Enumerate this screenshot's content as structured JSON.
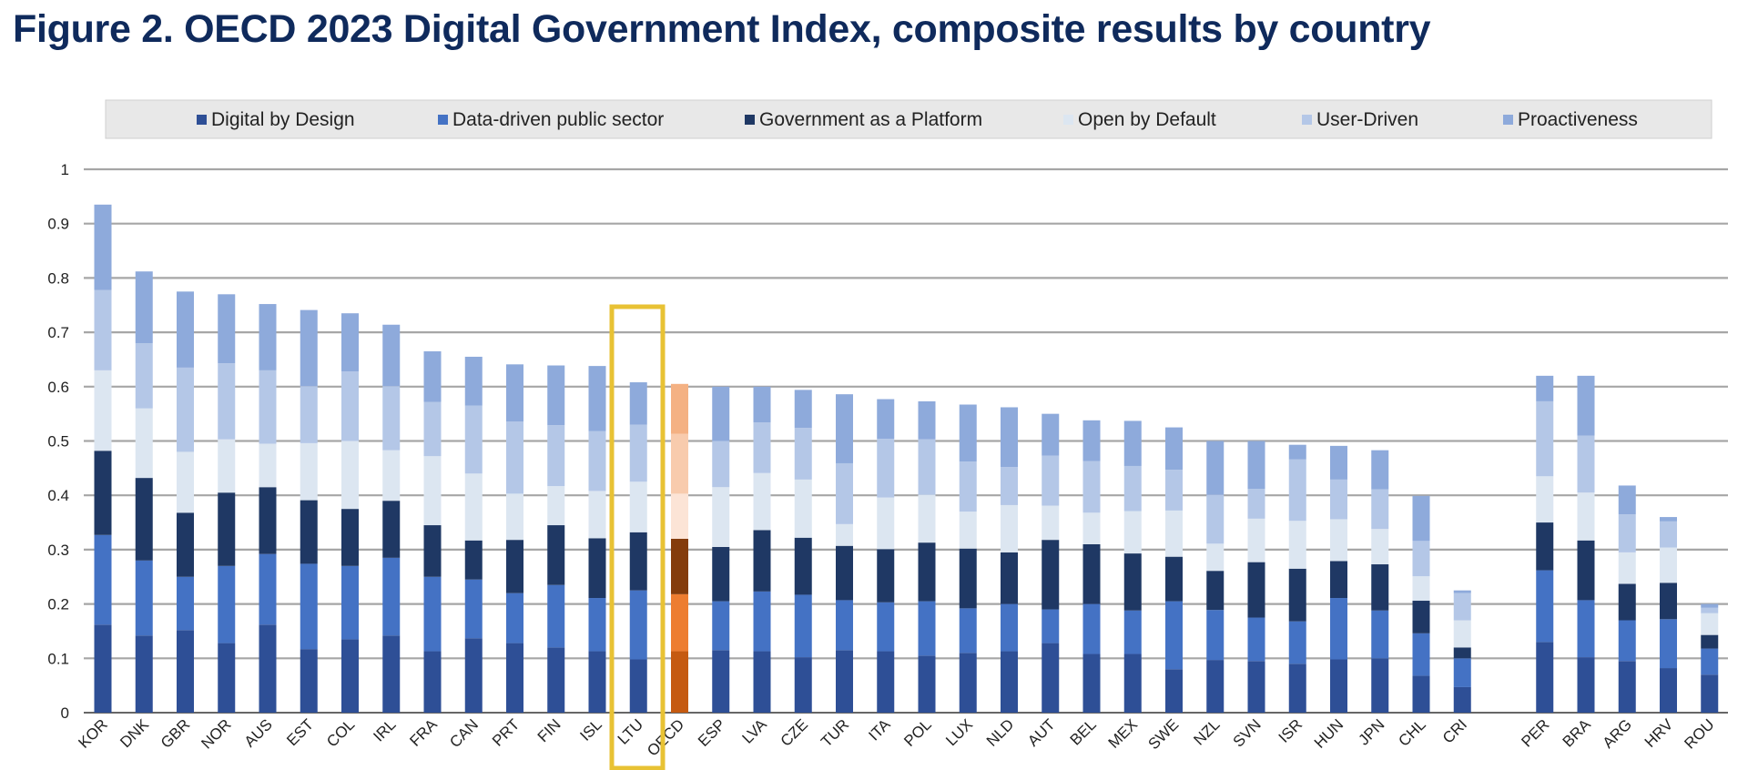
{
  "title": "Figure 2. OECD 2023 Digital Government Index, composite results by country",
  "chart_data": {
    "type": "bar",
    "stacked": true,
    "title": "Figure 2. OECD 2023 Digital Government Index, composite results by country",
    "xlabel": "",
    "ylabel": "",
    "ylim": [
      0,
      1
    ],
    "yticks": [
      "0",
      "0.1",
      "0.2",
      "0.3",
      "0.4",
      "0.5",
      "0.6",
      "0.7",
      "0.8",
      "0.9",
      "1"
    ],
    "grid": true,
    "legend_position": "top",
    "highlight": "LTU",
    "categories": [
      "KOR",
      "DNK",
      "GBR",
      "NOR",
      "AUS",
      "EST",
      "COL",
      "IRL",
      "FRA",
      "CAN",
      "PRT",
      "FIN",
      "ISL",
      "LTU",
      "OECD",
      "ESP",
      "LVA",
      "CZE",
      "TUR",
      "ITA",
      "POL",
      "LUX",
      "NLD",
      "AUT",
      "BEL",
      "MEX",
      "SWE",
      "NZL",
      "SVN",
      "ISR",
      "HUN",
      "JPN",
      "CHL",
      "CRI",
      "",
      "PER",
      "BRA",
      "ARG",
      "HRV",
      "ROU"
    ],
    "series": [
      {
        "name": "Digital by Design",
        "color": "#2e4f96",
        "values": [
          0.162,
          0.142,
          0.152,
          0.128,
          0.162,
          0.117,
          0.135,
          0.142,
          0.113,
          0.137,
          0.128,
          0.12,
          0.113,
          0.098,
          0.113,
          0.115,
          0.113,
          0.102,
          0.115,
          0.113,
          0.105,
          0.11,
          0.113,
          0.128,
          0.108,
          0.108,
          0.08,
          0.097,
          0.095,
          0.09,
          0.098,
          0.1,
          0.068,
          0.047,
          null,
          0.13,
          0.102,
          0.095,
          0.082,
          0.07
        ]
      },
      {
        "name": "Data-driven public sector",
        "color": "#4472c4",
        "values": [
          0.165,
          0.138,
          0.098,
          0.142,
          0.13,
          0.157,
          0.135,
          0.143,
          0.137,
          0.108,
          0.092,
          0.115,
          0.098,
          0.127,
          0.105,
          0.09,
          0.11,
          0.115,
          0.092,
          0.09,
          0.1,
          0.082,
          0.087,
          0.062,
          0.092,
          0.08,
          0.125,
          0.092,
          0.08,
          0.078,
          0.113,
          0.088,
          0.078,
          0.053,
          null,
          0.132,
          0.105,
          0.075,
          0.09,
          0.048
        ]
      },
      {
        "name": "Government as a Platform",
        "color": "#1f3864",
        "values": [
          0.155,
          0.152,
          0.118,
          0.135,
          0.123,
          0.117,
          0.105,
          0.105,
          0.095,
          0.072,
          0.098,
          0.11,
          0.11,
          0.107,
          0.102,
          0.1,
          0.113,
          0.105,
          0.1,
          0.098,
          0.108,
          0.11,
          0.095,
          0.128,
          0.11,
          0.105,
          0.082,
          0.072,
          0.102,
          0.097,
          0.068,
          0.085,
          0.06,
          0.02,
          null,
          0.088,
          0.11,
          0.067,
          0.067,
          0.025
        ]
      },
      {
        "name": "Open by Default",
        "color": "#dce6f1",
        "values": [
          0.148,
          0.128,
          0.112,
          0.098,
          0.08,
          0.105,
          0.125,
          0.093,
          0.127,
          0.123,
          0.085,
          0.072,
          0.087,
          0.093,
          0.083,
          0.11,
          0.105,
          0.107,
          0.04,
          0.095,
          0.088,
          0.068,
          0.087,
          0.063,
          0.058,
          0.078,
          0.085,
          0.05,
          0.08,
          0.088,
          0.077,
          0.065,
          0.045,
          0.05,
          null,
          0.085,
          0.088,
          0.058,
          0.065,
          0.04
        ]
      },
      {
        "name": "User-Driven",
        "color": "#b4c7e7",
        "values": [
          0.148,
          0.12,
          0.155,
          0.14,
          0.135,
          0.105,
          0.128,
          0.118,
          0.1,
          0.125,
          0.133,
          0.112,
          0.11,
          0.105,
          0.11,
          0.085,
          0.093,
          0.095,
          0.112,
          0.108,
          0.102,
          0.092,
          0.07,
          0.092,
          0.095,
          0.083,
          0.075,
          0.09,
          0.055,
          0.113,
          0.073,
          0.073,
          0.065,
          0.05,
          null,
          0.138,
          0.105,
          0.07,
          0.048,
          0.01
        ]
      },
      {
        "name": "Proactiveness",
        "color": "#8eaadb",
        "values": [
          0.157,
          0.132,
          0.14,
          0.127,
          0.122,
          0.14,
          0.107,
          0.113,
          0.093,
          0.09,
          0.105,
          0.11,
          0.12,
          0.078,
          0.092,
          0.1,
          0.066,
          0.07,
          0.127,
          0.073,
          0.07,
          0.105,
          0.11,
          0.077,
          0.075,
          0.083,
          0.078,
          0.099,
          0.088,
          0.027,
          0.062,
          0.072,
          0.083,
          0.005,
          null,
          0.047,
          0.11,
          0.053,
          0.008,
          0.007
        ]
      }
    ]
  }
}
